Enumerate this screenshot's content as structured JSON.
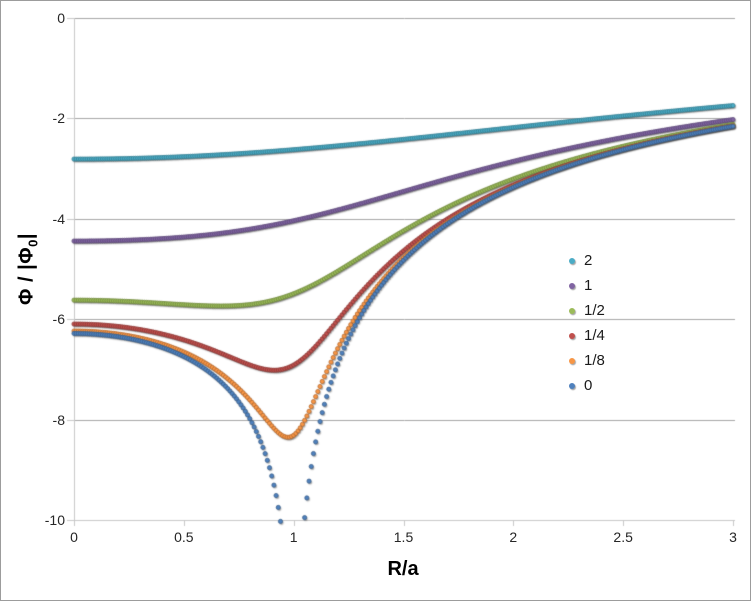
{
  "frame": {
    "background": "#FFFFFF",
    "border_color": "#9C9C9C",
    "gridline_color": "#A6A6A6",
    "axis_color": "#C8C8C8",
    "tick_label_color": "#262626",
    "axis_title_color": "#000000"
  },
  "chart_data": {
    "type": "scatter",
    "title": "",
    "xlabel": "R/a",
    "ylabel": "Φ / |Φ₀|",
    "ylabel_parts": {
      "pre": "Φ / |Φ",
      "sub": "0",
      "post": "|"
    },
    "xlim": [
      0,
      3
    ],
    "ylim": [
      -10,
      0
    ],
    "xticks": [
      0,
      0.5,
      1,
      1.5,
      2,
      2.5,
      3
    ],
    "xtick_labels": [
      "0",
      "0.5",
      "1",
      "1.5",
      "2",
      "2.5",
      "3"
    ],
    "yticks": [
      0,
      -2,
      -4,
      -6,
      -8,
      -10
    ],
    "ytick_labels": [
      "0",
      "-2",
      "-4",
      "-6",
      "-8",
      "-10"
    ],
    "grid": "horizontal-only",
    "legend_position": "middle-right",
    "marker": "circle",
    "marker_diameter_px": 4.2,
    "x_sampling": {
      "start": 0,
      "end": 3,
      "step": 0.01
    },
    "formula": "y(R; z) = -4·K(m)/√((R+1)² + z²),  m = 4R/((R+1)² + z²) — normalized electrostatic potential of a uniformly charged ring (radius a = 1) at cylindrical radius R and height z; K = complete elliptic integral of the first kind; the z = 0 curve diverges at R = 1 (points below y = -10 are clipped)",
    "anchor_x": [
      0,
      0.5,
      1,
      1.5,
      2,
      2.5,
      3
    ],
    "series": [
      {
        "label": "2",
        "z": 2,
        "color": "#4BACC6",
        "edge": "#357D91",
        "anchor_y": [
          -2.81,
          -2.76,
          -2.62,
          -2.42,
          -2.18,
          -1.95,
          -1.74
        ]
      },
      {
        "label": "1",
        "z": 1,
        "color": "#8064A2",
        "edge": "#5E4A78",
        "anchor_y": [
          -4.44,
          -4.36,
          -4.04,
          -3.45,
          -2.86,
          -2.38,
          -2.02
        ]
      },
      {
        "label": "1/2",
        "z": 0.5,
        "color": "#9BBB59",
        "edge": "#71893F",
        "anchor_y": [
          -5.62,
          -5.71,
          -5.49,
          -4.24,
          -3.21,
          -2.55,
          -2.12
        ]
      },
      {
        "label": "1/4",
        "z": 0.25,
        "color": "#C0504D",
        "edge": "#8C3836",
        "anchor_y": [
          -6.1,
          -6.41,
          -6.91,
          -4.64,
          -3.33,
          -2.61,
          -2.15
        ]
      },
      {
        "label": "1/8",
        "z": 0.125,
        "color": "#F79646",
        "edge": "#B56A2E",
        "anchor_y": [
          -6.23,
          -6.65,
          -8.31,
          -4.78,
          -3.36,
          -2.62,
          -2.15
        ]
      },
      {
        "label": "0",
        "z": 0,
        "color": "#4F81BD",
        "edge": "#395E8A",
        "anchor_y": [
          -6.28,
          -6.74,
          null,
          -4.83,
          -3.37,
          -2.62,
          -2.16
        ]
      }
    ]
  }
}
